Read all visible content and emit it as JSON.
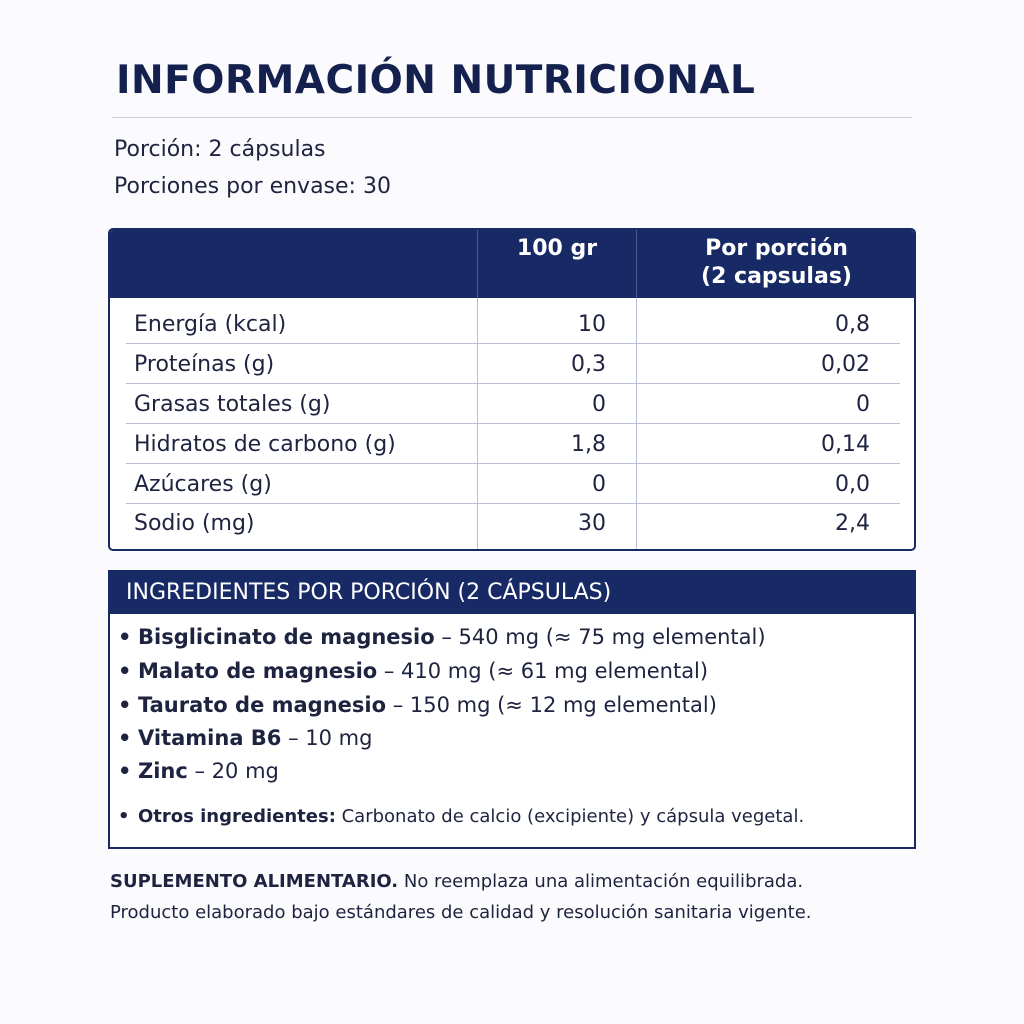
{
  "title": "INFORMACIÓN NUTRICIONAL",
  "serving": {
    "portion": "Porción: 2 cápsulas",
    "portions_per_container": "Porciones por envase: 30"
  },
  "nutrition_table": {
    "header_col1": "100 gr",
    "header_col2_line1": "Por porción",
    "header_col2_line2": "(2 capsulas)",
    "rows": [
      {
        "label": "Energía (kcal)",
        "per100": "10",
        "perserving": "0,8"
      },
      {
        "label": "Proteínas (g)",
        "per100": "0,3",
        "perserving": "0,02"
      },
      {
        "label": "Grasas totales (g)",
        "per100": "0",
        "perserving": "0"
      },
      {
        "label": "Hidratos de carbono (g)",
        "per100": "1,8",
        "perserving": "0,14"
      },
      {
        "label": "Azúcares (g)",
        "per100": "0",
        "perserving": "0,0"
      },
      {
        "label": "Sodio (mg)",
        "per100": "30",
        "perserving": "2,4"
      }
    ]
  },
  "ingredients": {
    "heading": "INGREDIENTES POR PORCIÓN (2 CÁPSULAS)",
    "bullet": "•",
    "items": [
      {
        "name": "Bisglicinato de magnesio",
        "detail": " – 540 mg (≈ 75 mg elemental)"
      },
      {
        "name": "Malato de magnesio",
        "detail": " – 410 mg (≈ 61 mg elemental)"
      },
      {
        "name": "Taurato de magnesio",
        "detail": " – 150 mg (≈ 12 mg elemental)"
      },
      {
        "name": "Vitamina B6",
        "detail": " – 10 mg"
      },
      {
        "name": "Zinc",
        "detail": " – 20 mg"
      }
    ],
    "other_label": "Otros ingredientes:",
    "other_text": " Carbonato de calcio (excipiente) y cápsula vegetal."
  },
  "footer": {
    "bold": "SUPLEMENTO ALIMENTARIO.",
    "line1_rest": " No reemplaza una alimentación equilibrada.",
    "line2": "Producto elaborado bajo estándares de calidad y resolución sanitaria vigente."
  },
  "colors": {
    "navy": "#172a66",
    "background": "#fbfafc",
    "text": "#1e2340"
  }
}
